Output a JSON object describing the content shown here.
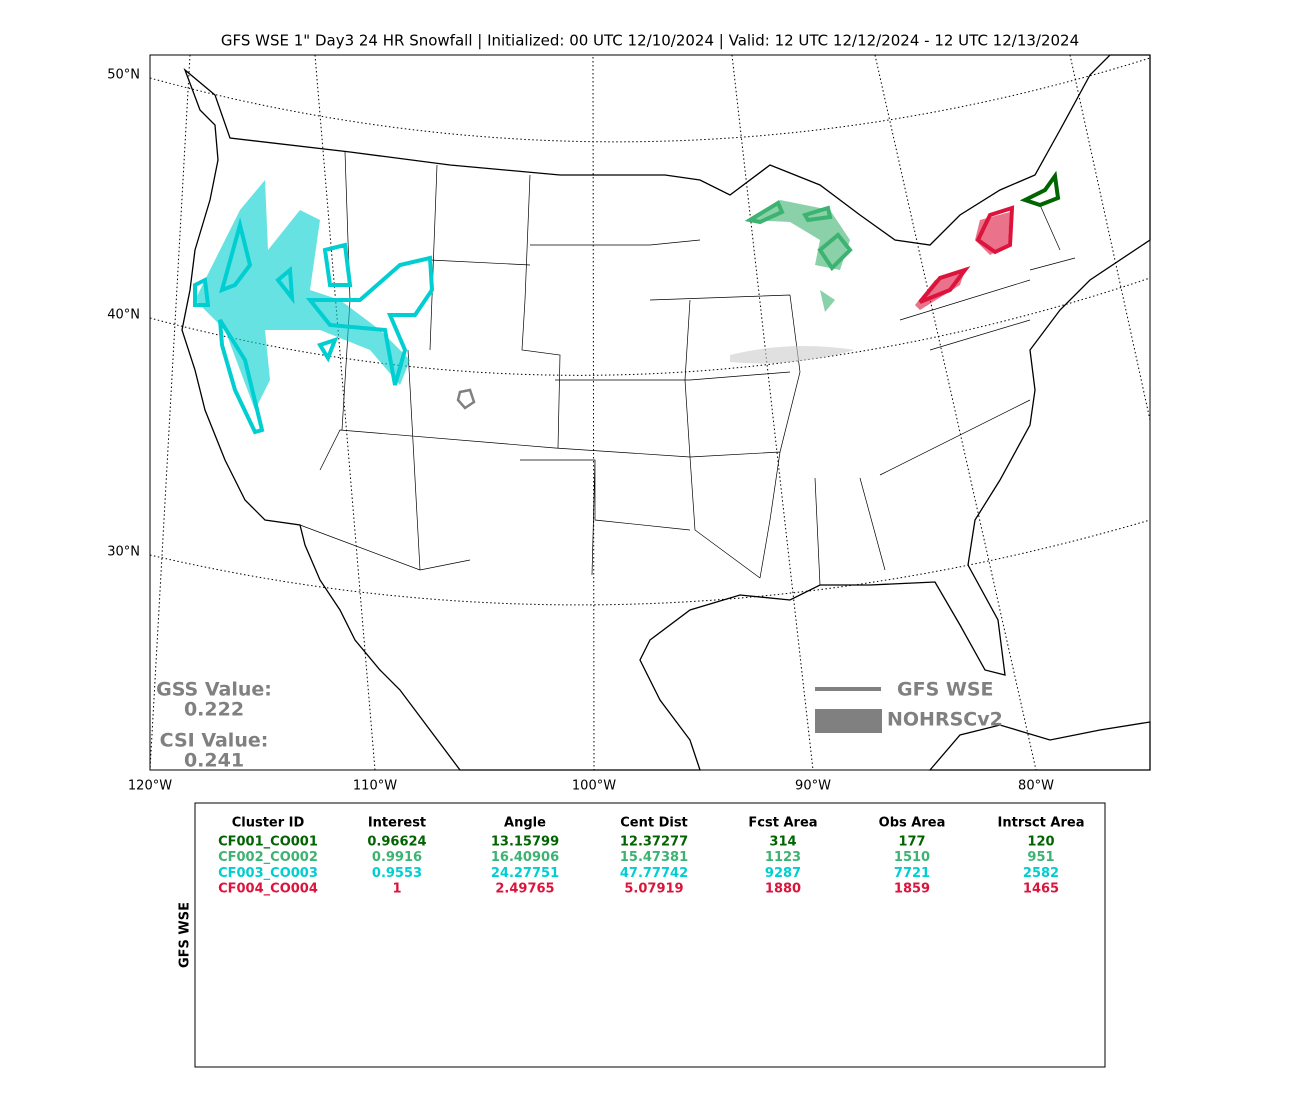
{
  "title": "GFS WSE 1\" Day3 24 HR Snowfall | Initialized: 00 UTC 12/10/2024 | Valid: 12 UTC 12/12/2024 - 12 UTC 12/13/2024",
  "map": {
    "lat_labels": [
      "50°N",
      "40°N",
      "30°N"
    ],
    "lon_labels": [
      "120°W",
      "110°W",
      "100°W",
      "90°W",
      "80°W"
    ],
    "scores": [
      {
        "label": "GSS Value:",
        "value": 0.222
      },
      {
        "label": "CSI Value:",
        "value": 0.241
      }
    ],
    "legend": [
      {
        "name": "GFS WSE",
        "style": "line"
      },
      {
        "name": "NOHRSCv2",
        "style": "fill"
      }
    ],
    "legend_color": "#808080"
  },
  "table": {
    "side_label": "GFS WSE",
    "columns": [
      "Cluster ID",
      "Interest",
      "Angle",
      "Cent Dist",
      "Fcst Area",
      "Obs Area",
      "Intrsct Area"
    ],
    "rows": [
      {
        "color": "#006400",
        "cells": [
          "CF001_CO001",
          0.96624,
          13.15799,
          12.37277,
          314,
          177,
          120
        ]
      },
      {
        "color": "#3cb371",
        "cells": [
          "CF002_CO002",
          0.9916,
          16.40906,
          15.47381,
          1123,
          1510,
          951
        ]
      },
      {
        "color": "#00ced1",
        "cells": [
          "CF003_CO003",
          0.9553,
          24.27751,
          47.77742,
          9287,
          7721,
          2582
        ]
      },
      {
        "color": "#dc143c",
        "cells": [
          "CF004_CO004",
          1,
          2.49765,
          5.07919,
          1880,
          1859,
          1465
        ]
      }
    ]
  }
}
